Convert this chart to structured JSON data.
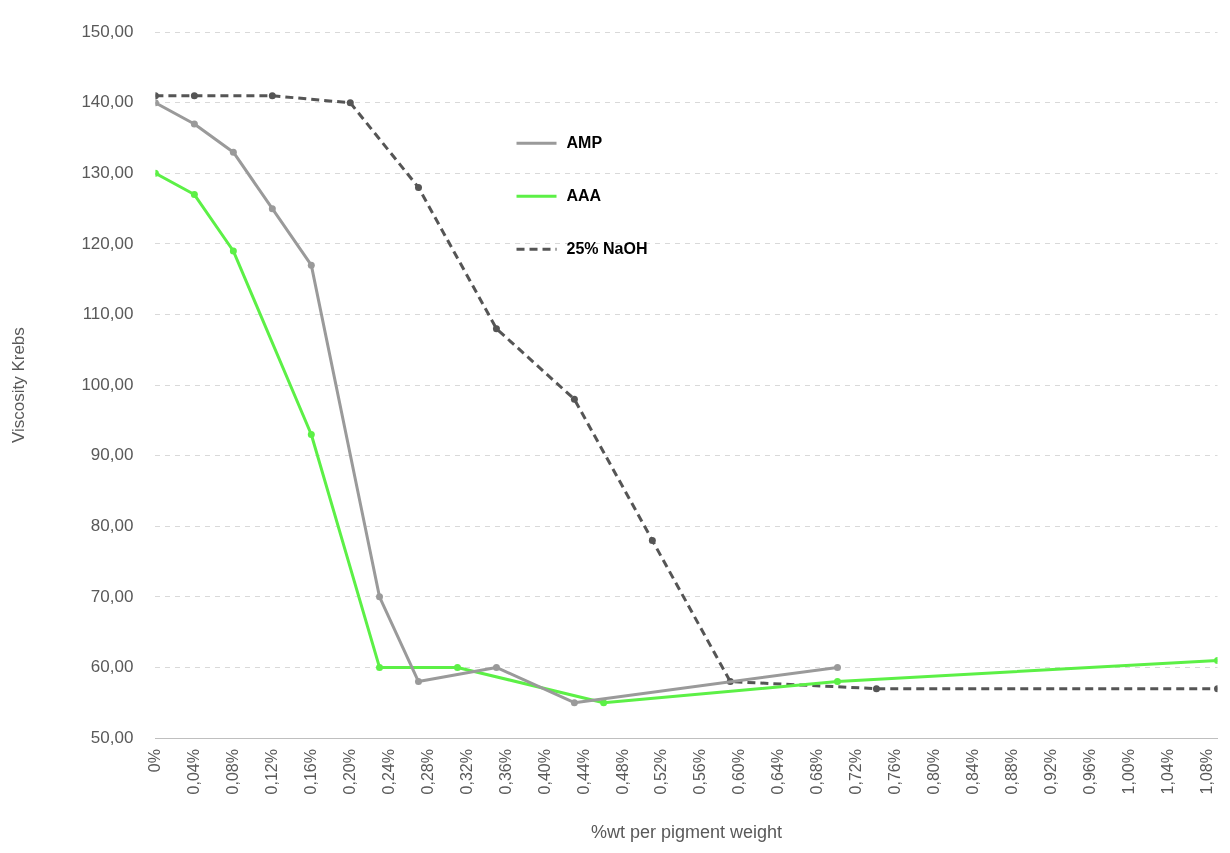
{
  "chart_data": {
    "type": "line",
    "xlabel": "%wt per pigment weight",
    "ylabel": "Viscosity Krebs",
    "xlim": [
      0,
      1.09
    ],
    "xticks": [
      {
        "value": 0,
        "label": "0%"
      },
      {
        "value": 0.04,
        "label": "0,04%"
      },
      {
        "value": 0.08,
        "label": "0,08%"
      },
      {
        "value": 0.12,
        "label": "0,12%"
      },
      {
        "value": 0.16,
        "label": "0,16%"
      },
      {
        "value": 0.2,
        "label": "0,20%"
      },
      {
        "value": 0.24,
        "label": "0,24%"
      },
      {
        "value": 0.28,
        "label": "0,28%"
      },
      {
        "value": 0.32,
        "label": "0,32%"
      },
      {
        "value": 0.36,
        "label": "0,36%"
      },
      {
        "value": 0.4,
        "label": "0,40%"
      },
      {
        "value": 0.44,
        "label": "0,44%"
      },
      {
        "value": 0.48,
        "label": "0,48%"
      },
      {
        "value": 0.52,
        "label": "0,52%"
      },
      {
        "value": 0.56,
        "label": "0,56%"
      },
      {
        "value": 0.6,
        "label": "0,60%"
      },
      {
        "value": 0.64,
        "label": "0,64%"
      },
      {
        "value": 0.68,
        "label": "0,68%"
      },
      {
        "value": 0.72,
        "label": "0,72%"
      },
      {
        "value": 0.76,
        "label": "0,76%"
      },
      {
        "value": 0.8,
        "label": "0,80%"
      },
      {
        "value": 0.84,
        "label": "0,84%"
      },
      {
        "value": 0.88,
        "label": "0,88%"
      },
      {
        "value": 0.92,
        "label": "0,92%"
      },
      {
        "value": 0.96,
        "label": "0,96%"
      },
      {
        "value": 1.0,
        "label": "1,00%"
      },
      {
        "value": 1.04,
        "label": "1,04%"
      },
      {
        "value": 1.08,
        "label": "1,08%"
      }
    ],
    "ylim": [
      50,
      150
    ],
    "yticks": [
      {
        "value": 50,
        "label": "50,00"
      },
      {
        "value": 60,
        "label": "60,00"
      },
      {
        "value": 70,
        "label": "70,00"
      },
      {
        "value": 80,
        "label": "80,00"
      },
      {
        "value": 90,
        "label": "90,00"
      },
      {
        "value": 100,
        "label": "100,00"
      },
      {
        "value": 110,
        "label": "110,00"
      },
      {
        "value": 120,
        "label": "120,00"
      },
      {
        "value": 130,
        "label": "130,00"
      },
      {
        "value": 140,
        "label": "140,00"
      },
      {
        "value": 150,
        "label": "150,00"
      }
    ],
    "grid": "y",
    "legend": "top",
    "marker": "circle",
    "series": [
      {
        "name": "AMP",
        "color": "#9a9a9a",
        "line_style": "solid",
        "x": [
          0,
          0.04,
          0.08,
          0.12,
          0.16,
          0.23,
          0.27,
          0.35,
          0.43,
          0.7
        ],
        "values": [
          140,
          137,
          133,
          125,
          117,
          70,
          58,
          60,
          55,
          60
        ]
      },
      {
        "name": "AAA",
        "color": "#5cf046",
        "line_style": "solid",
        "x": [
          0,
          0.04,
          0.08,
          0.16,
          0.23,
          0.31,
          0.46,
          0.7,
          1.09
        ],
        "values": [
          130,
          127,
          119,
          93,
          60,
          60,
          55,
          58,
          61
        ]
      },
      {
        "name": "25% NaOH",
        "color": "#555555",
        "line_style": "dashed",
        "x": [
          0,
          0.04,
          0.12,
          0.2,
          0.27,
          0.35,
          0.43,
          0.51,
          0.59,
          0.74,
          1.09
        ],
        "values": [
          141,
          141,
          141,
          140,
          128,
          108,
          98,
          78,
          58,
          57,
          57
        ]
      }
    ]
  }
}
